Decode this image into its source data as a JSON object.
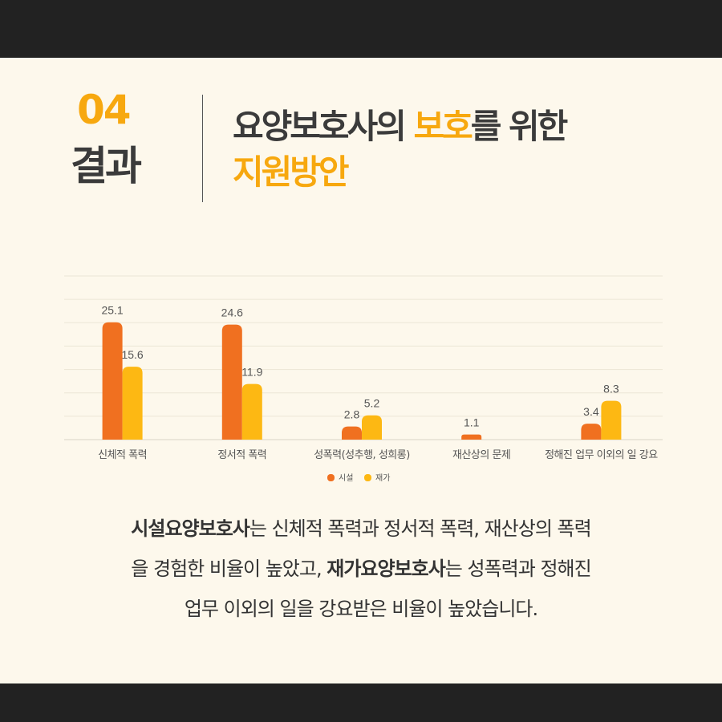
{
  "header": {
    "number": "04",
    "label": "결과",
    "title_part1": "요양보호사의 ",
    "title_highlight": "보호",
    "title_part2": "를 위한",
    "title_line2": "지원방안"
  },
  "chart_data": {
    "type": "bar",
    "categories": [
      "신체적 폭력",
      "정서적 폭력",
      "성폭력(성추행, 성희롱)",
      "재산상의 문제",
      "정해진 업무 이외의 일 강요"
    ],
    "series": [
      {
        "name": "시설",
        "values": [
          25.1,
          24.6,
          2.8,
          1.1,
          3.4
        ],
        "color": "#f07020"
      },
      {
        "name": "재가",
        "values": [
          15.6,
          11.9,
          5.2,
          null,
          8.3
        ],
        "color": "#fdb813"
      }
    ],
    "ylim": [
      0,
      35
    ],
    "grid": true,
    "legend": "bottom-center"
  },
  "description": {
    "line1_bold": "시설요양보호사",
    "line1_rest": "는 신체적 폭력과 정서적 폭력, 재산상의 폭력",
    "line2_start": "을 경험한 비율이 높았고, ",
    "line2_bold": "재가요양보호사",
    "line2_rest": "는 성폭력과 정해진",
    "line3": "업무 이외의 일을 강요받은 비율이 높았습니다."
  }
}
